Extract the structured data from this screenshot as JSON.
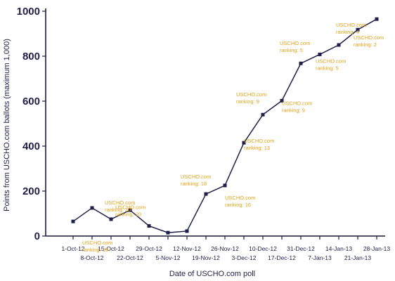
{
  "chart_data": {
    "type": "line",
    "ylabel": "Points from USCHO.com ballots (maximum 1,000)",
    "xlabel": "Date of USCHO.com poll",
    "ylim": [
      0,
      1000
    ],
    "yticks": [
      0,
      200,
      400,
      600,
      800,
      1000
    ],
    "grid": false,
    "categories": [
      "1-Oct-12",
      "8-Oct-12",
      "15-Oct-12",
      "22-Oct-12",
      "29-Oct-12",
      "5-Nov-12",
      "12-Nov-12",
      "19-Nov-12",
      "26-Nov-12",
      "3-Dec-12",
      "10-Dec-12",
      "17-Dec-12",
      "31-Dec-12",
      "7-Jan-13",
      "14-Jan-13",
      "21-Jan-13",
      "28-Jan-13"
    ],
    "values": [
      65,
      125,
      75,
      115,
      45,
      15,
      22,
      187,
      225,
      415,
      540,
      602,
      768,
      808,
      850,
      918,
      965
    ],
    "annotations": [
      {
        "index": 1,
        "lines": [
          "USCHO.com",
          "ranking: 18"
        ]
      },
      {
        "index": 3,
        "lines": [
          "USCHO.com",
          "ranking: 20"
        ]
      },
      {
        "index": 4,
        "lines": [
          "USCHO.com",
          "ranking: 20"
        ]
      },
      {
        "index": 7,
        "lines": [
          "USCHO.com",
          "ranking: 18"
        ]
      },
      {
        "index": 8,
        "lines": [
          "USCHO.com",
          "ranking: 16"
        ]
      },
      {
        "index": 9,
        "lines": [
          "USCHO.com",
          "ranking: 13"
        ]
      },
      {
        "index": 10,
        "lines": [
          "USCHO.com",
          "ranking: 9"
        ]
      },
      {
        "index": 11,
        "lines": [
          "USCHO.com",
          "ranking: 9"
        ]
      },
      {
        "index": 12,
        "lines": [
          "USCHO.com",
          "ranking: 5"
        ]
      },
      {
        "index": 13,
        "lines": [
          "USCHO.com",
          "ranking: 5"
        ]
      },
      {
        "index": 14,
        "lines": [
          "USCHO.com",
          "ranking: 4"
        ]
      },
      {
        "index": 15,
        "lines": [
          "USCHO.com",
          "ranking: 2"
        ]
      },
      {
        "index": 16,
        "lines": [
          "USCHO.com",
          "ranking: 2"
        ]
      }
    ]
  }
}
